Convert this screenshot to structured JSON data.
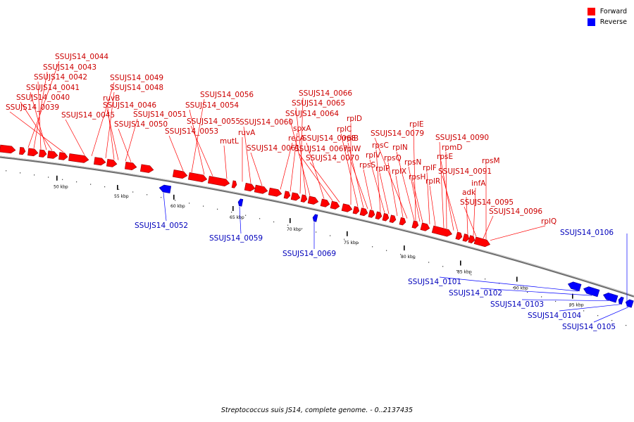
{
  "colors": {
    "forward": "#ff0000",
    "reverse": "#0000ff",
    "backbone": "#6e6e6e",
    "label_forward": "#cc0000",
    "label_reverse": "#0000bb"
  },
  "legend": {
    "forward_label": "Forward",
    "reverse_label": "Reverse"
  },
  "caption": "Streptococcus suis JS14, complete genome. - 0..2137435",
  "scale": {
    "unit": "kbp",
    "ticks": [
      "50 kbp",
      "55 kbp",
      "60 kbp",
      "65 kbp",
      "70 kbp",
      "75 kbp",
      "80 kbp",
      "85 kbp",
      "90 kbp",
      "95 kbp"
    ]
  },
  "forward_labels": [
    "SSUJS14_0044",
    "SSUJS14_0043",
    "SSUJS14_0042",
    "SSUJS14_0041",
    "SSUJS14_0040",
    "SSUJS14_0039",
    "SSUJS14_0049",
    "SSUJS14_0048",
    "ruvB",
    "SSUJS14_0046",
    "SSUJS14_0045",
    "SSUJS14_0051",
    "SSUJS14_0050",
    "SSUJS14_0056",
    "SSUJS14_0054",
    "SSUJS14_0055",
    "SSUJS14_0053",
    "mutL",
    "ruvA",
    "SSUJS14_0060",
    "SSUJS14_0061",
    "recA",
    "spxA",
    "SSUJS14_0066",
    "SSUJS14_0065",
    "SSUJS14_0064",
    "SSUJS14_0068",
    "SSUJS14_0067",
    "SSUJS14_0070",
    "rplD",
    "rplC",
    "rplB",
    "rplW",
    "rpsC",
    "rplV",
    "rpsS",
    "rplP",
    "rpsQ",
    "rplX",
    "SSUJS14_0079",
    "rplE",
    "rplN",
    "rpsN",
    "rpsH",
    "rplF",
    "rplR",
    "SSUJS14_0090",
    "rpmD",
    "rpsE",
    "SSUJS14_0091",
    "infA",
    "adk",
    "SSUJS14_0095",
    "SSUJS14_0096",
    "rpsM",
    "rplQ"
  ],
  "reverse_labels": [
    "SSUJS14_0052",
    "SSUJS14_0059",
    "SSUJS14_0069",
    "SSUJS14_0106",
    "SSUJS14_0101",
    "SSUJS14_0102",
    "SSUJS14_0103",
    "SSUJS14_0104",
    "SSUJS14_0105"
  ]
}
